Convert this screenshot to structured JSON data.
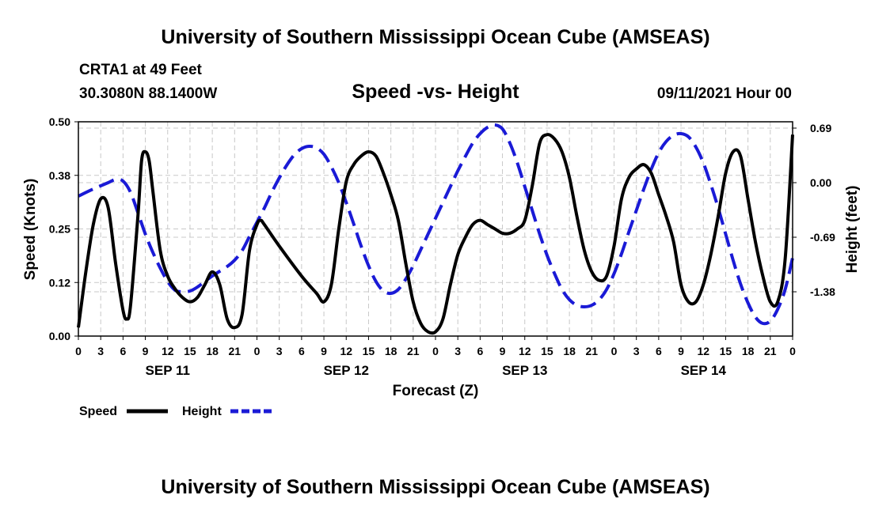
{
  "header": {
    "title": "University of Southern Mississippi Ocean Cube (AMSEAS)",
    "station": "CRTA1 at 49 Feet",
    "coords": "30.3080N  88.1400W",
    "datetime": "09/11/2021 Hour 00",
    "footer_title": "University of Southern Mississippi Ocean Cube (AMSEAS)"
  },
  "colors": {
    "speed": "#000000",
    "height": "#1a1ad6",
    "grid": "#c8c8c8"
  },
  "chart_data": {
    "type": "line",
    "title": "Speed -vs- Height",
    "xlabel": "Forecast (Z)",
    "ylabel": "Speed (Knots)",
    "y2label": "Height (feet)",
    "xlim": [
      0,
      96
    ],
    "ylim": [
      0,
      0.5
    ],
    "y2lim": [
      -1.94,
      0.77
    ],
    "xticks": [
      0,
      3,
      6,
      9,
      12,
      15,
      18,
      21,
      24,
      27,
      30,
      33,
      36,
      39,
      42,
      45,
      48,
      51,
      54,
      57,
      60,
      63,
      66,
      69,
      72,
      75,
      78,
      81,
      84,
      87,
      90,
      93,
      96
    ],
    "xtick_labels": [
      "0",
      "3",
      "6",
      "9",
      "12",
      "15",
      "18",
      "21",
      "0",
      "3",
      "6",
      "9",
      "12",
      "15",
      "18",
      "21",
      "0",
      "3",
      "6",
      "9",
      "12",
      "15",
      "18",
      "21",
      "0",
      "3",
      "6",
      "9",
      "12",
      "15",
      "18",
      "21",
      "0"
    ],
    "yticks": [
      0.0,
      0.125,
      0.25,
      0.375,
      0.5
    ],
    "ytick_labels": [
      "0.00",
      "0.12",
      "0.25",
      "0.38",
      "0.50"
    ],
    "y2ticks": [
      0.69,
      0.0,
      -0.69,
      -1.38
    ],
    "y2tick_labels": [
      "0.69",
      "0.00",
      "-0.69",
      "-1.38"
    ],
    "day_labels": [
      {
        "x": 12,
        "label": "SEP 11"
      },
      {
        "x": 36,
        "label": "SEP 12"
      },
      {
        "x": 60,
        "label": "SEP 13"
      },
      {
        "x": 84,
        "label": "SEP 14"
      }
    ],
    "series": [
      {
        "name": "Speed",
        "axis": "left",
        "style": "solid",
        "points": [
          [
            0,
            0.02
          ],
          [
            1,
            0.15
          ],
          [
            2,
            0.26
          ],
          [
            3,
            0.32
          ],
          [
            4,
            0.3
          ],
          [
            5,
            0.17
          ],
          [
            6,
            0.06
          ],
          [
            6.5,
            0.04
          ],
          [
            7,
            0.07
          ],
          [
            8,
            0.28
          ],
          [
            8.5,
            0.41
          ],
          [
            9,
            0.43
          ],
          [
            9.5,
            0.41
          ],
          [
            10,
            0.34
          ],
          [
            11,
            0.2
          ],
          [
            12,
            0.14
          ],
          [
            13,
            0.11
          ],
          [
            14,
            0.09
          ],
          [
            15,
            0.08
          ],
          [
            16,
            0.09
          ],
          [
            17,
            0.12
          ],
          [
            18,
            0.15
          ],
          [
            19,
            0.12
          ],
          [
            20,
            0.04
          ],
          [
            21,
            0.02
          ],
          [
            22,
            0.05
          ],
          [
            23,
            0.2
          ],
          [
            24,
            0.26
          ],
          [
            24.5,
            0.27
          ],
          [
            25,
            0.26
          ],
          [
            27,
            0.21
          ],
          [
            30,
            0.14
          ],
          [
            32,
            0.1
          ],
          [
            33,
            0.08
          ],
          [
            34,
            0.12
          ],
          [
            35,
            0.25
          ],
          [
            36,
            0.36
          ],
          [
            37,
            0.4
          ],
          [
            38,
            0.42
          ],
          [
            39,
            0.43
          ],
          [
            40,
            0.42
          ],
          [
            41,
            0.38
          ],
          [
            42,
            0.33
          ],
          [
            43,
            0.27
          ],
          [
            44,
            0.17
          ],
          [
            45,
            0.08
          ],
          [
            46,
            0.03
          ],
          [
            47,
            0.01
          ],
          [
            48,
            0.01
          ],
          [
            49,
            0.04
          ],
          [
            50,
            0.12
          ],
          [
            51,
            0.19
          ],
          [
            52,
            0.23
          ],
          [
            53,
            0.26
          ],
          [
            54,
            0.27
          ],
          [
            55,
            0.26
          ],
          [
            56,
            0.25
          ],
          [
            57,
            0.24
          ],
          [
            58,
            0.24
          ],
          [
            59,
            0.25
          ],
          [
            60,
            0.27
          ],
          [
            61,
            0.35
          ],
          [
            62,
            0.45
          ],
          [
            63,
            0.47
          ],
          [
            64,
            0.46
          ],
          [
            65,
            0.43
          ],
          [
            66,
            0.37
          ],
          [
            67,
            0.28
          ],
          [
            68,
            0.2
          ],
          [
            69,
            0.15
          ],
          [
            70,
            0.13
          ],
          [
            71,
            0.14
          ],
          [
            72,
            0.21
          ],
          [
            73,
            0.32
          ],
          [
            74,
            0.37
          ],
          [
            75,
            0.39
          ],
          [
            76,
            0.4
          ],
          [
            77,
            0.38
          ],
          [
            78,
            0.33
          ],
          [
            79,
            0.28
          ],
          [
            80,
            0.22
          ],
          [
            81,
            0.12
          ],
          [
            82,
            0.08
          ],
          [
            83,
            0.08
          ],
          [
            84,
            0.12
          ],
          [
            85,
            0.19
          ],
          [
            86,
            0.28
          ],
          [
            87,
            0.38
          ],
          [
            88,
            0.43
          ],
          [
            89,
            0.42
          ],
          [
            90,
            0.32
          ],
          [
            91,
            0.22
          ],
          [
            92,
            0.14
          ],
          [
            93,
            0.08
          ],
          [
            94,
            0.08
          ],
          [
            95,
            0.18
          ],
          [
            96,
            0.47
          ]
        ]
      },
      {
        "name": "Height",
        "axis": "right",
        "style": "dashed",
        "points": [
          [
            0,
            -0.17
          ],
          [
            2,
            -0.08
          ],
          [
            4,
            0.0
          ],
          [
            5,
            0.04
          ],
          [
            6,
            0.02
          ],
          [
            7,
            -0.12
          ],
          [
            8,
            -0.38
          ],
          [
            9,
            -0.65
          ],
          [
            10,
            -0.88
          ],
          [
            11,
            -1.08
          ],
          [
            12,
            -1.25
          ],
          [
            13,
            -1.36
          ],
          [
            14,
            -1.38
          ],
          [
            15,
            -1.37
          ],
          [
            16,
            -1.32
          ],
          [
            18,
            -1.18
          ],
          [
            20,
            -1.06
          ],
          [
            21,
            -0.98
          ],
          [
            22,
            -0.86
          ],
          [
            23,
            -0.68
          ],
          [
            24,
            -0.5
          ],
          [
            25,
            -0.32
          ],
          [
            26,
            -0.12
          ],
          [
            27,
            0.06
          ],
          [
            28,
            0.22
          ],
          [
            29,
            0.35
          ],
          [
            30,
            0.43
          ],
          [
            31,
            0.46
          ],
          [
            32,
            0.44
          ],
          [
            33,
            0.36
          ],
          [
            34,
            0.2
          ],
          [
            35,
            0.0
          ],
          [
            36,
            -0.25
          ],
          [
            37,
            -0.52
          ],
          [
            38,
            -0.8
          ],
          [
            39,
            -1.05
          ],
          [
            40,
            -1.25
          ],
          [
            41,
            -1.37
          ],
          [
            42,
            -1.4
          ],
          [
            43,
            -1.35
          ],
          [
            44,
            -1.22
          ],
          [
            45,
            -1.05
          ],
          [
            46,
            -0.85
          ],
          [
            47,
            -0.65
          ],
          [
            48,
            -0.45
          ],
          [
            49,
            -0.25
          ],
          [
            50,
            -0.05
          ],
          [
            51,
            0.15
          ],
          [
            52,
            0.33
          ],
          [
            53,
            0.5
          ],
          [
            54,
            0.62
          ],
          [
            55,
            0.7
          ],
          [
            56,
            0.73
          ],
          [
            57,
            0.68
          ],
          [
            58,
            0.5
          ],
          [
            59,
            0.25
          ],
          [
            60,
            -0.05
          ],
          [
            61,
            -0.35
          ],
          [
            62,
            -0.65
          ],
          [
            63,
            -0.92
          ],
          [
            64,
            -1.15
          ],
          [
            65,
            -1.35
          ],
          [
            66,
            -1.48
          ],
          [
            67,
            -1.55
          ],
          [
            68,
            -1.57
          ],
          [
            69,
            -1.55
          ],
          [
            70,
            -1.48
          ],
          [
            71,
            -1.35
          ],
          [
            72,
            -1.15
          ],
          [
            73,
            -0.9
          ],
          [
            74,
            -0.62
          ],
          [
            75,
            -0.35
          ],
          [
            76,
            -0.08
          ],
          [
            77,
            0.17
          ],
          [
            78,
            0.38
          ],
          [
            79,
            0.52
          ],
          [
            80,
            0.6
          ],
          [
            81,
            0.62
          ],
          [
            82,
            0.58
          ],
          [
            83,
            0.45
          ],
          [
            84,
            0.25
          ],
          [
            85,
            -0.02
          ],
          [
            86,
            -0.32
          ],
          [
            87,
            -0.65
          ],
          [
            88,
            -0.98
          ],
          [
            89,
            -1.28
          ],
          [
            90,
            -1.52
          ],
          [
            91,
            -1.7
          ],
          [
            92,
            -1.78
          ],
          [
            93,
            -1.75
          ],
          [
            94,
            -1.6
          ],
          [
            95,
            -1.35
          ],
          [
            96,
            -0.95
          ]
        ]
      }
    ],
    "legend": [
      {
        "label": "Speed",
        "series": "Speed"
      },
      {
        "label": "Height",
        "series": "Height"
      }
    ]
  }
}
